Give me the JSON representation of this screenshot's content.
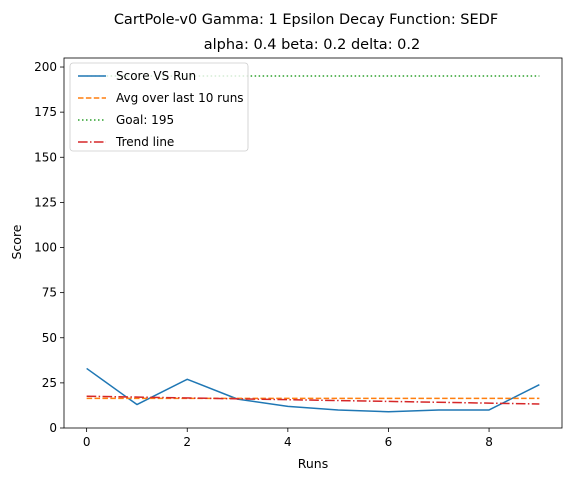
{
  "chart_data": {
    "type": "line",
    "title_line1": "CartPole-v0 Gamma: 1 Epsilon Decay Function: SEDF",
    "title_line2": "alpha: 0.4  beta: 0.2  delta: 0.2",
    "xlabel": "Runs",
    "ylabel": "Score",
    "xlim": [
      -0.45,
      9.45
    ],
    "ylim": [
      0,
      205
    ],
    "x_ticks": [
      0,
      2,
      4,
      6,
      8
    ],
    "y_ticks": [
      0,
      25,
      50,
      75,
      100,
      125,
      150,
      175,
      200
    ],
    "x": [
      0,
      1,
      2,
      3,
      4,
      5,
      6,
      7,
      8,
      9
    ],
    "legend_position": "upper-left",
    "grid": false,
    "series": [
      {
        "name": "Score VS Run",
        "color": "#1f77b4",
        "style": "solid",
        "x": [
          0,
          1,
          2,
          3,
          4,
          5,
          6,
          7,
          8,
          9
        ],
        "values": [
          33,
          13,
          27,
          16,
          12,
          10,
          9,
          10,
          10,
          24
        ]
      },
      {
        "name": "Avg over last 10 runs",
        "color": "#ff7f0e",
        "style": "dashed",
        "x": [
          0,
          9
        ],
        "values": [
          16.4,
          16.4
        ]
      },
      {
        "name": "Goal: 195",
        "color": "#2ca02c",
        "style": "dotted",
        "x": [
          0,
          9
        ],
        "values": [
          195,
          195
        ]
      },
      {
        "name": "Trend line",
        "color": "#d62728",
        "style": "dashdot",
        "x": [
          0,
          9
        ],
        "values": [
          17.6,
          13.3
        ]
      }
    ]
  }
}
